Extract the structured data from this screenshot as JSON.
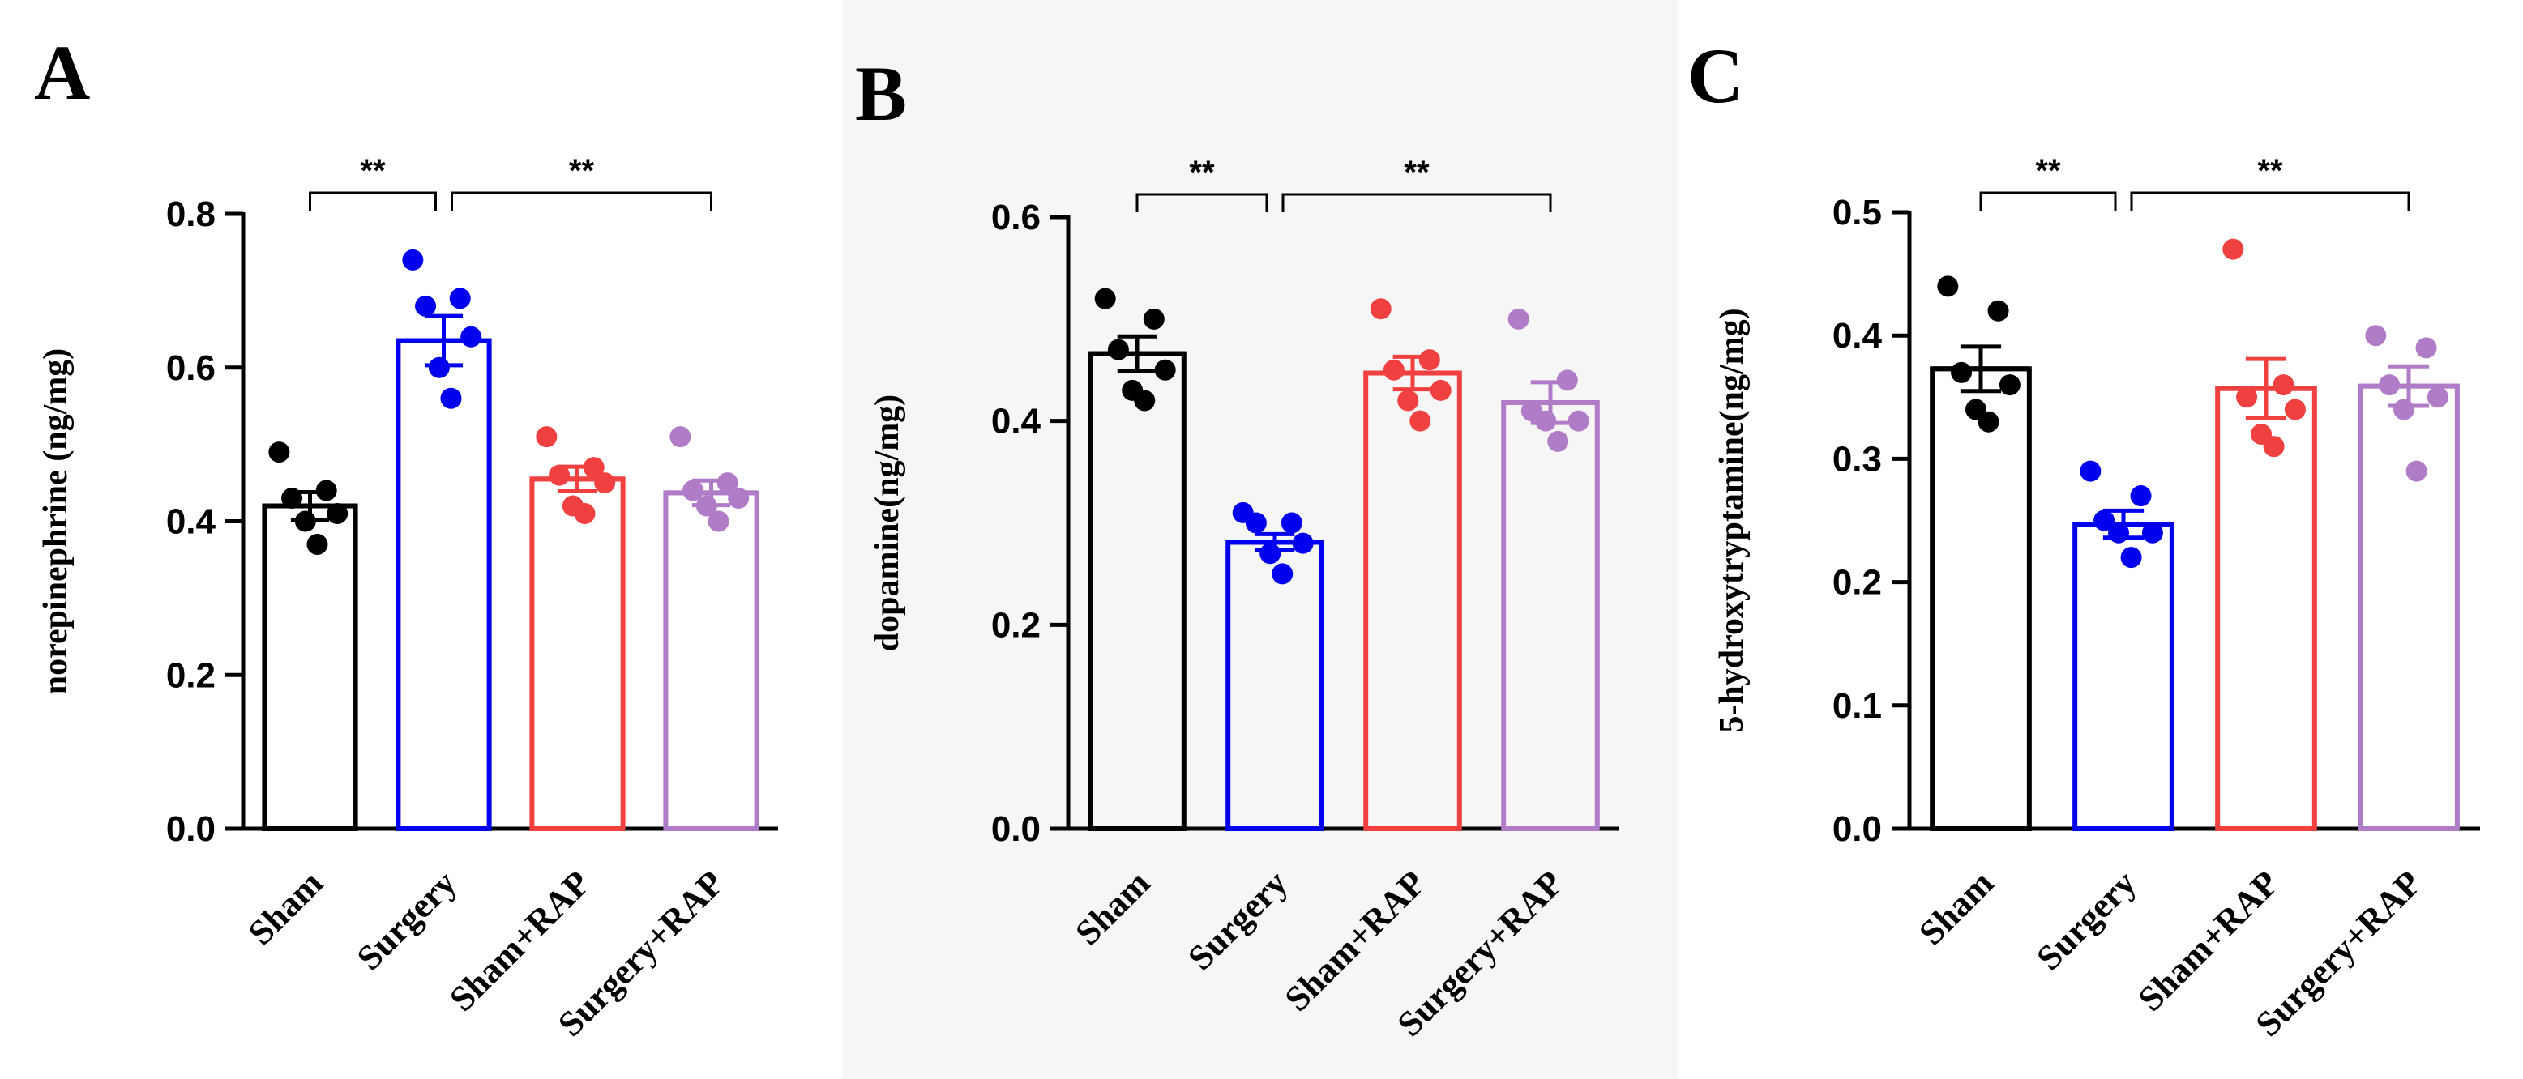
{
  "chart_data": [
    {
      "type": "bar",
      "panel_label": "A",
      "ylabel": "norepinephrine (ng/mg)",
      "xlabel": "",
      "ylim": [
        0,
        0.8
      ],
      "yticks": [
        0.0,
        0.2,
        0.4,
        0.6,
        0.8
      ],
      "ytick_labels": [
        "0.0",
        "0.2",
        "0.4",
        "0.6",
        "0.8"
      ],
      "categories": [
        "Sham",
        "Surgery",
        "Sham+RAP",
        "Surgery+RAP"
      ],
      "colors": [
        "#000000",
        "#0000ee",
        "#f04040",
        "#b07cc8"
      ],
      "values": [
        0.42,
        0.635,
        0.455,
        0.437
      ],
      "sem": [
        0.018,
        0.032,
        0.016,
        0.016
      ],
      "points": [
        [
          0.49,
          0.44,
          0.43,
          0.41,
          0.4,
          0.37
        ],
        [
          0.74,
          0.69,
          0.68,
          0.64,
          0.6,
          0.56
        ],
        [
          0.51,
          0.47,
          0.46,
          0.45,
          0.42,
          0.41
        ],
        [
          0.51,
          0.45,
          0.44,
          0.43,
          0.42,
          0.4
        ]
      ],
      "significance": [
        {
          "groups": [
            0,
            1
          ],
          "label": "**"
        },
        {
          "groups": [
            1,
            3
          ],
          "label": "**"
        }
      ],
      "grid": false
    },
    {
      "type": "bar",
      "panel_label": "B",
      "ylabel": "dopamine(ng/mg)",
      "xlabel": "",
      "ylim": [
        0,
        0.6
      ],
      "yticks": [
        0.0,
        0.2,
        0.4,
        0.6
      ],
      "ytick_labels": [
        "0.0",
        "0.2",
        "0.4",
        "0.6"
      ],
      "categories": [
        "Sham",
        "Surgery",
        "Sham+RAP",
        "Surgery+RAP"
      ],
      "colors": [
        "#000000",
        "#0000ee",
        "#f04040",
        "#b07cc8"
      ],
      "values": [
        0.466,
        0.281,
        0.447,
        0.418
      ],
      "sem": [
        0.017,
        0.008,
        0.016,
        0.02
      ],
      "points": [
        [
          0.52,
          0.5,
          0.47,
          0.45,
          0.43,
          0.42
        ],
        [
          0.31,
          0.3,
          0.3,
          0.28,
          0.27,
          0.25
        ],
        [
          0.51,
          0.46,
          0.45,
          0.43,
          0.42,
          0.4
        ],
        [
          0.5,
          0.44,
          0.41,
          0.4,
          0.4,
          0.38
        ]
      ],
      "significance": [
        {
          "groups": [
            0,
            1
          ],
          "label": "**"
        },
        {
          "groups": [
            1,
            3
          ],
          "label": "**"
        }
      ],
      "grid": false
    },
    {
      "type": "bar",
      "panel_label": "C",
      "ylabel": "5-hydroxytryptamine(ng/mg)",
      "xlabel": "",
      "ylim": [
        0,
        0.5
      ],
      "yticks": [
        0.0,
        0.1,
        0.2,
        0.3,
        0.4,
        0.5
      ],
      "ytick_labels": [
        "0.0",
        "0.1",
        "0.2",
        "0.3",
        "0.4",
        "0.5"
      ],
      "categories": [
        "Sham",
        "Surgery",
        "Sham+RAP",
        "Surgery+RAP"
      ],
      "colors": [
        "#000000",
        "#0000ee",
        "#f04040",
        "#b07cc8"
      ],
      "values": [
        0.373,
        0.247,
        0.357,
        0.359
      ],
      "sem": [
        0.018,
        0.011,
        0.024,
        0.016
      ],
      "points": [
        [
          0.44,
          0.42,
          0.37,
          0.36,
          0.34,
          0.33
        ],
        [
          0.29,
          0.27,
          0.25,
          0.24,
          0.24,
          0.22
        ],
        [
          0.47,
          0.36,
          0.35,
          0.34,
          0.32,
          0.31
        ],
        [
          0.4,
          0.39,
          0.36,
          0.35,
          0.34,
          0.29
        ]
      ],
      "significance": [
        {
          "groups": [
            0,
            1
          ],
          "label": "**"
        },
        {
          "groups": [
            1,
            3
          ],
          "label": "**"
        }
      ],
      "grid": false
    }
  ]
}
